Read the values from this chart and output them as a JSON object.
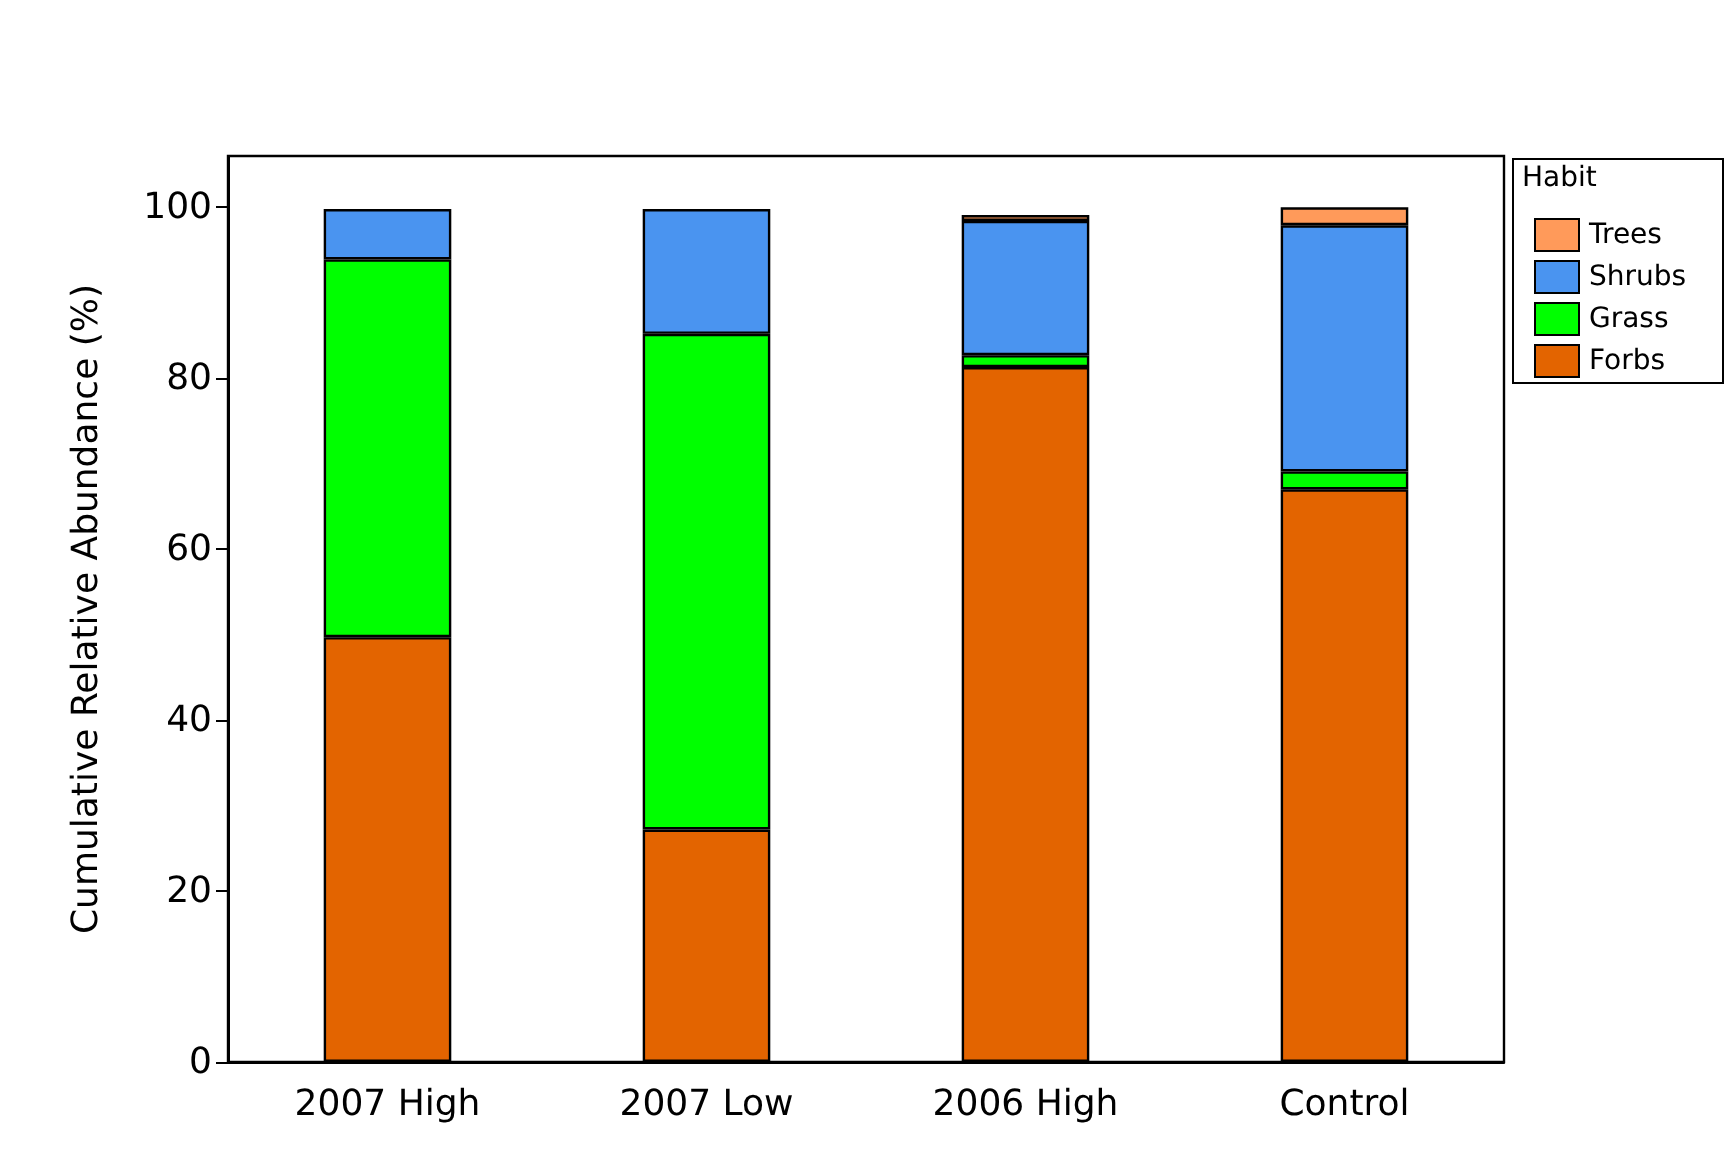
{
  "chart_data": {
    "type": "bar",
    "stacked": true,
    "ylabel": "Cumulative Relative Abundance (%)",
    "legend_title": "Habit",
    "legend": "right",
    "grid": false,
    "categories": [
      "2007 High",
      "2007 Low",
      "2006 High",
      "Control"
    ],
    "ylim": [
      0,
      106
    ],
    "yticks": [
      0,
      20,
      40,
      60,
      80,
      100
    ],
    "series": [
      {
        "name": "Forbs",
        "color": "#e36400",
        "values": [
          49.7,
          27.2,
          81.3,
          67.0
        ]
      },
      {
        "name": "Grass",
        "color": "#00ff00",
        "values": [
          44.2,
          58.0,
          1.4,
          2.1
        ]
      },
      {
        "name": "Shrubs",
        "color": "#4a94f0",
        "values": [
          5.9,
          14.6,
          15.7,
          28.8
        ]
      },
      {
        "name": "Trees",
        "color": "#ff9a5a",
        "values": [
          null,
          null,
          0.7,
          2.1
        ]
      }
    ]
  }
}
